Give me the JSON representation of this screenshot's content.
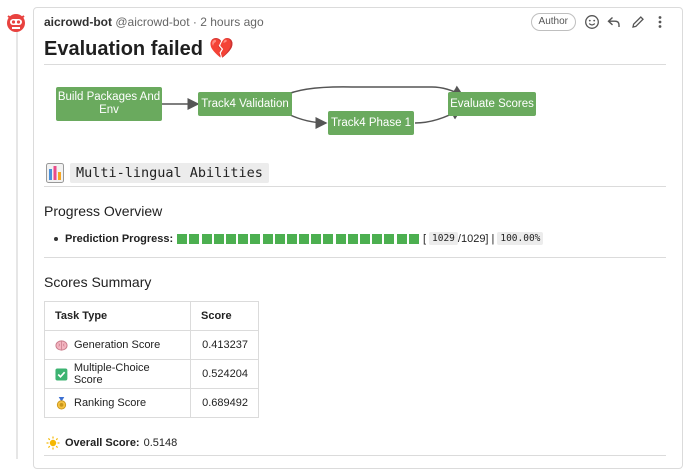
{
  "post": {
    "author_name": "aicrowd-bot",
    "author_handle": "@aicrowd-bot",
    "separator": "·",
    "time": "2 hours ago",
    "badge": "Author",
    "title": "Evaluation failed",
    "title_emoji": "💔"
  },
  "diagram": {
    "nodes": [
      {
        "id": "build",
        "label": "Build Packages And Env"
      },
      {
        "id": "validation",
        "label": "Track4 Validation"
      },
      {
        "id": "phase1",
        "label": "Track4 Phase 1"
      },
      {
        "id": "evaluate",
        "label": "Evaluate Scores"
      }
    ],
    "edges": [
      [
        "build",
        "validation"
      ],
      [
        "validation",
        "evaluate"
      ],
      [
        "validation",
        "phase1"
      ],
      [
        "phase1",
        "evaluate"
      ]
    ],
    "node_color": "#6aaa5e"
  },
  "section": {
    "icon": "bar-chart-icon",
    "heading": "Multi-lingual Abilities"
  },
  "progress": {
    "heading": "Progress Overview",
    "label": "Prediction Progress:",
    "open_bracket": "[",
    "done": "1029",
    "total": "/1029]",
    "pipe": "|",
    "percent_text": "100.00%",
    "fraction": 1.0,
    "squares": 20,
    "color": "#4caf50"
  },
  "scores": {
    "heading": "Scores Summary",
    "columns": [
      "Task Type",
      "Score"
    ],
    "rows": [
      {
        "icon": "brain-icon",
        "task": "Generation Score",
        "score": "0.413237"
      },
      {
        "icon": "check-mark-icon",
        "task": "Multiple-Choice Score",
        "score": "0.524204"
      },
      {
        "icon": "medal-icon",
        "task": "Ranking Score",
        "score": "0.689492"
      }
    ],
    "overall_label": "Overall Score:",
    "overall_value": "0.5148",
    "overall_icon": "sun-icon"
  }
}
